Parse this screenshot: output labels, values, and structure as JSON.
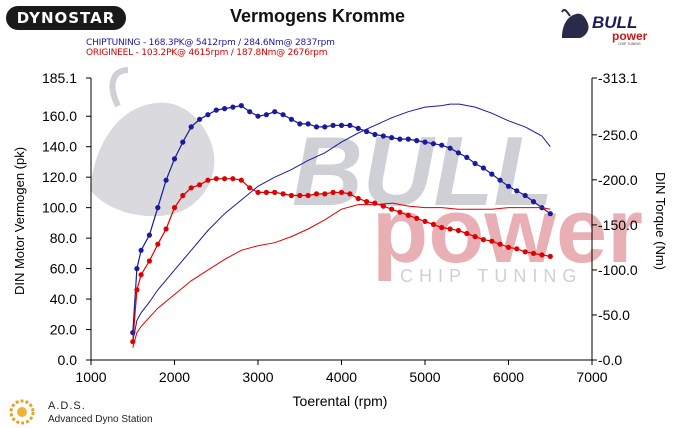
{
  "header": {
    "brand_logo_text": "DYNOSTAR",
    "title": "Vermogens Kromme",
    "legend_chiptuning": "CHIPTUNING - 168.3PK@ 5412rpm / 284.6Nm@ 2837rpm",
    "legend_origineel": "ORIGINEEL - 103.2PK@ 4615rpm / 187.8Nm@ 2676rpm"
  },
  "watermark": {
    "brand_top": "BULL",
    "brand_bottom": "power",
    "tagline": "CHIP TUNING"
  },
  "footer": {
    "ads_title": "A.D.S.",
    "ads_subtitle": "Advanced Dyno Station"
  },
  "colors": {
    "chiptuning": "#1a1aa0",
    "origineel": "#e00000",
    "watermark_red": "#e8b0b4",
    "watermark_grey": "#cfcfd6"
  },
  "chart_data": {
    "type": "line",
    "xlabel": "Toerental (rpm)",
    "ylabel_left": "DIN Motor Vermogen (pk)",
    "ylabel_right": "DIN Torque (Nm)",
    "xlim": [
      1000,
      7000
    ],
    "ylim_left": [
      0,
      185.1
    ],
    "ylim_right": [
      0,
      313.1
    ],
    "x_ticks": [
      "1000",
      "2000",
      "3000",
      "4000",
      "5000",
      "6000",
      "7000"
    ],
    "y_ticks_left": [
      "0.0",
      "20.0",
      "40.0",
      "60.0",
      "80.0",
      "100.0",
      "120.0",
      "140.0",
      "160.0",
      "185.1"
    ],
    "y_ticks_right": [
      "0.0",
      "50.0",
      "100.0",
      "150.0",
      "200.0",
      "250.0",
      "313.1"
    ],
    "series": [
      {
        "name": "CHIPTUNING",
        "role": "torque",
        "axis": "left",
        "color": "#1a1aa0",
        "x": [
          1500,
          1550,
          1600,
          1700,
          1800,
          1900,
          2000,
          2100,
          2200,
          2300,
          2400,
          2500,
          2600,
          2700,
          2800,
          2900,
          3000,
          3100,
          3200,
          3300,
          3400,
          3500,
          3600,
          3700,
          3800,
          3900,
          4000,
          4100,
          4200,
          4300,
          4400,
          4500,
          4600,
          4700,
          4800,
          4900,
          5000,
          5100,
          5200,
          5300,
          5400,
          5500,
          5600,
          5700,
          5800,
          5900,
          6000,
          6100,
          6200,
          6300,
          6400,
          6500
        ],
        "y": [
          18,
          60,
          72,
          82,
          100,
          118,
          132,
          143,
          153,
          158,
          161,
          164,
          165,
          166,
          167,
          163,
          160,
          161,
          163,
          161,
          158,
          155,
          155,
          153,
          153,
          154,
          154,
          154,
          152,
          150,
          148,
          147,
          146,
          145,
          145,
          144,
          143,
          142,
          141,
          139,
          136,
          133,
          129,
          126,
          122,
          118,
          114,
          111,
          108,
          104,
          100,
          96
        ]
      },
      {
        "name": "CHIPTUNING",
        "role": "power",
        "axis": "left",
        "color": "#1a1aa0",
        "x": [
          1500,
          1550,
          1600,
          1700,
          1800,
          2000,
          2200,
          2400,
          2600,
          2800,
          3000,
          3200,
          3400,
          3600,
          3800,
          4000,
          4200,
          4400,
          4600,
          4800,
          5000,
          5200,
          5300,
          5412,
          5600,
          5800,
          6000,
          6200,
          6400,
          6500
        ],
        "y": [
          12,
          26,
          31,
          38,
          46,
          59,
          72,
          85,
          96,
          105,
          114,
          120,
          125,
          131,
          136,
          143,
          149,
          154,
          159,
          163,
          166,
          167,
          168,
          168,
          166,
          162,
          157,
          153,
          147,
          140
        ]
      },
      {
        "name": "ORIGINEEL",
        "role": "torque",
        "axis": "left",
        "color": "#e00000",
        "x": [
          1500,
          1550,
          1600,
          1700,
          1800,
          1900,
          2000,
          2100,
          2200,
          2300,
          2400,
          2500,
          2600,
          2700,
          2800,
          2900,
          3000,
          3100,
          3200,
          3300,
          3400,
          3500,
          3600,
          3700,
          3800,
          3900,
          4000,
          4100,
          4200,
          4300,
          4400,
          4500,
          4600,
          4700,
          4800,
          4900,
          5000,
          5100,
          5200,
          5300,
          5400,
          5500,
          5600,
          5700,
          5800,
          5900,
          6000,
          6100,
          6200,
          6300,
          6400,
          6500
        ],
        "y": [
          12,
          46,
          56,
          65,
          76,
          86,
          100,
          108,
          113,
          115,
          118,
          119,
          119,
          119,
          118,
          113,
          110,
          110,
          110,
          109,
          108,
          108,
          108,
          109,
          109,
          110,
          110,
          109,
          106,
          104,
          103,
          101,
          99,
          97,
          95,
          93,
          91,
          89,
          87,
          86,
          85,
          83,
          81,
          79,
          78,
          76,
          74,
          73,
          71,
          70,
          69,
          68
        ]
      },
      {
        "name": "ORIGINEEL",
        "role": "power",
        "axis": "left",
        "color": "#e00000",
        "x": [
          1500,
          1550,
          1600,
          1700,
          1800,
          2000,
          2200,
          2400,
          2600,
          2800,
          3000,
          3200,
          3400,
          3600,
          3800,
          4000,
          4200,
          4400,
          4615,
          4800,
          5000,
          5200,
          5400,
          5600,
          5800,
          6000,
          6200,
          6400,
          6500
        ],
        "y": [
          8,
          18,
          22,
          28,
          34,
          43,
          52,
          59,
          66,
          72,
          75,
          77,
          81,
          86,
          92,
          99,
          102,
          102,
          103,
          101,
          100,
          100,
          99,
          99,
          99,
          100,
          100,
          100,
          99
        ]
      }
    ]
  }
}
